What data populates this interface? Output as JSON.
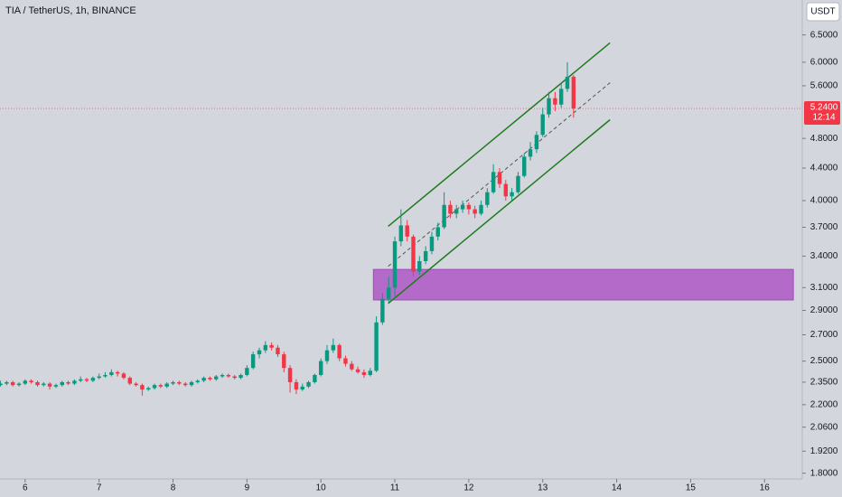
{
  "chart_data": {
    "type": "candlestick",
    "title": "TIA / TetherUS, 1h, BINANCE",
    "currency_button": "USDT",
    "log_scale": true,
    "up_color": "#089981",
    "down_color": "#f23645",
    "xlim": [
      5.66,
      16.51
    ],
    "ylim": [
      1.77,
      7.2
    ],
    "xticks": [
      6,
      7,
      8,
      9,
      10,
      11,
      12,
      13,
      14,
      15,
      16
    ],
    "yticks": [
      {
        "value": 6.5,
        "label": "6.5000"
      },
      {
        "value": 6.0,
        "label": "6.0000"
      },
      {
        "value": 5.6,
        "label": "5.6000"
      },
      {
        "value": 4.8,
        "label": "4.8000"
      },
      {
        "value": 4.4,
        "label": "4.4000"
      },
      {
        "value": 4.0,
        "label": "4.0000"
      },
      {
        "value": 3.7,
        "label": "3.7000"
      },
      {
        "value": 3.4,
        "label": "3.4000"
      },
      {
        "value": 3.1,
        "label": "3.1000"
      },
      {
        "value": 2.9,
        "label": "2.9000"
      },
      {
        "value": 2.7,
        "label": "2.7000"
      },
      {
        "value": 2.5,
        "label": "2.5000"
      },
      {
        "value": 2.35,
        "label": "2.3500"
      },
      {
        "value": 2.2,
        "label": "2.2000"
      },
      {
        "value": 2.06,
        "label": "2.0600"
      },
      {
        "value": 1.92,
        "label": "1.9200"
      },
      {
        "value": 1.8,
        "label": "1.8000"
      }
    ],
    "last_price": {
      "value": 5.24,
      "label": "5.2400",
      "countdown": "12:14",
      "color": "#f23645"
    },
    "x": [
      5.667,
      5.75,
      5.833,
      5.917,
      6,
      6.083,
      6.167,
      6.25,
      6.333,
      6.417,
      6.5,
      6.583,
      6.667,
      6.75,
      6.833,
      6.917,
      7,
      7.083,
      7.167,
      7.25,
      7.333,
      7.417,
      7.5,
      7.583,
      7.667,
      7.75,
      7.833,
      7.917,
      8,
      8.083,
      8.167,
      8.25,
      8.333,
      8.417,
      8.5,
      8.583,
      8.667,
      8.75,
      8.833,
      8.917,
      9,
      9.083,
      9.167,
      9.25,
      9.333,
      9.417,
      9.5,
      9.583,
      9.667,
      9.75,
      9.833,
      9.917,
      10,
      10.083,
      10.167,
      10.25,
      10.333,
      10.417,
      10.5,
      10.583,
      10.667,
      10.75,
      10.833,
      10.917,
      11,
      11.083,
      11.167,
      11.25,
      11.333,
      11.417,
      11.5,
      11.583,
      11.667,
      11.75,
      11.833,
      11.917,
      12,
      12.083,
      12.167,
      12.25,
      12.333,
      12.417,
      12.5,
      12.583,
      12.667,
      12.75,
      12.833,
      12.917,
      13,
      13.083,
      13.167,
      13.25,
      13.333,
      13.417
    ],
    "ohlc": [
      [
        2.33,
        2.36,
        2.32,
        2.34
      ],
      [
        2.34,
        2.36,
        2.33,
        2.35
      ],
      [
        2.35,
        2.36,
        2.32,
        2.33
      ],
      [
        2.33,
        2.35,
        2.32,
        2.34
      ],
      [
        2.34,
        2.37,
        2.33,
        2.36
      ],
      [
        2.36,
        2.37,
        2.34,
        2.35
      ],
      [
        2.35,
        2.36,
        2.32,
        2.33
      ],
      [
        2.33,
        2.35,
        2.32,
        2.34
      ],
      [
        2.34,
        2.35,
        2.3,
        2.32
      ],
      [
        2.32,
        2.34,
        2.31,
        2.33
      ],
      [
        2.33,
        2.36,
        2.32,
        2.35
      ],
      [
        2.35,
        2.36,
        2.33,
        2.34
      ],
      [
        2.34,
        2.37,
        2.33,
        2.36
      ],
      [
        2.36,
        2.39,
        2.35,
        2.37
      ],
      [
        2.37,
        2.38,
        2.35,
        2.36
      ],
      [
        2.36,
        2.39,
        2.35,
        2.38
      ],
      [
        2.38,
        2.41,
        2.37,
        2.39
      ],
      [
        2.39,
        2.42,
        2.38,
        2.4
      ],
      [
        2.4,
        2.44,
        2.39,
        2.42
      ],
      [
        2.42,
        2.43,
        2.39,
        2.41
      ],
      [
        2.41,
        2.42,
        2.37,
        2.38
      ],
      [
        2.38,
        2.39,
        2.33,
        2.34
      ],
      [
        2.34,
        2.35,
        2.32,
        2.33
      ],
      [
        2.33,
        2.34,
        2.26,
        2.3
      ],
      [
        2.3,
        2.32,
        2.29,
        2.31
      ],
      [
        2.31,
        2.34,
        2.3,
        2.33
      ],
      [
        2.33,
        2.34,
        2.31,
        2.32
      ],
      [
        2.32,
        2.35,
        2.31,
        2.34
      ],
      [
        2.34,
        2.36,
        2.33,
        2.35
      ],
      [
        2.35,
        2.36,
        2.33,
        2.34
      ],
      [
        2.34,
        2.35,
        2.32,
        2.33
      ],
      [
        2.33,
        2.36,
        2.32,
        2.35
      ],
      [
        2.35,
        2.37,
        2.34,
        2.36
      ],
      [
        2.36,
        2.39,
        2.35,
        2.38
      ],
      [
        2.38,
        2.39,
        2.36,
        2.37
      ],
      [
        2.37,
        2.4,
        2.36,
        2.39
      ],
      [
        2.39,
        2.41,
        2.38,
        2.4
      ],
      [
        2.4,
        2.41,
        2.38,
        2.39
      ],
      [
        2.39,
        2.4,
        2.37,
        2.38
      ],
      [
        2.38,
        2.41,
        2.37,
        2.4
      ],
      [
        2.4,
        2.47,
        2.39,
        2.45
      ],
      [
        2.45,
        2.57,
        2.44,
        2.55
      ],
      [
        2.55,
        2.6,
        2.52,
        2.58
      ],
      [
        2.58,
        2.65,
        2.56,
        2.62
      ],
      [
        2.62,
        2.64,
        2.58,
        2.6
      ],
      [
        2.6,
        2.62,
        2.53,
        2.55
      ],
      [
        2.55,
        2.57,
        2.42,
        2.45
      ],
      [
        2.45,
        2.47,
        2.28,
        2.35
      ],
      [
        2.35,
        2.37,
        2.27,
        2.3
      ],
      [
        2.3,
        2.34,
        2.29,
        2.32
      ],
      [
        2.32,
        2.36,
        2.31,
        2.35
      ],
      [
        2.35,
        2.41,
        2.34,
        2.4
      ],
      [
        2.4,
        2.52,
        2.39,
        2.5
      ],
      [
        2.5,
        2.62,
        2.48,
        2.58
      ],
      [
        2.58,
        2.67,
        2.56,
        2.62
      ],
      [
        2.62,
        2.63,
        2.5,
        2.52
      ],
      [
        2.52,
        2.54,
        2.46,
        2.48
      ],
      [
        2.48,
        2.5,
        2.43,
        2.44
      ],
      [
        2.44,
        2.46,
        2.41,
        2.42
      ],
      [
        2.42,
        2.44,
        2.38,
        2.4
      ],
      [
        2.4,
        2.45,
        2.39,
        2.43
      ],
      [
        2.43,
        2.85,
        2.42,
        2.8
      ],
      [
        2.8,
        3.05,
        2.78,
        3.0
      ],
      [
        3.0,
        3.2,
        2.97,
        3.1
      ],
      [
        3.1,
        3.6,
        3.0,
        3.55
      ],
      [
        3.55,
        3.9,
        3.5,
        3.72
      ],
      [
        3.72,
        3.78,
        3.55,
        3.6
      ],
      [
        3.6,
        3.62,
        3.2,
        3.25
      ],
      [
        3.25,
        3.4,
        3.22,
        3.35
      ],
      [
        3.35,
        3.5,
        3.32,
        3.45
      ],
      [
        3.45,
        3.65,
        3.42,
        3.6
      ],
      [
        3.6,
        3.75,
        3.56,
        3.7
      ],
      [
        3.7,
        4.1,
        3.68,
        3.95
      ],
      [
        3.95,
        4.0,
        3.8,
        3.85
      ],
      [
        3.85,
        3.95,
        3.8,
        3.9
      ],
      [
        3.9,
        4.0,
        3.86,
        3.95
      ],
      [
        3.95,
        3.98,
        3.84,
        3.9
      ],
      [
        3.9,
        3.94,
        3.8,
        3.85
      ],
      [
        3.85,
        4.0,
        3.83,
        3.95
      ],
      [
        3.95,
        4.15,
        3.92,
        4.1
      ],
      [
        4.1,
        4.45,
        4.08,
        4.35
      ],
      [
        4.35,
        4.4,
        4.15,
        4.2
      ],
      [
        4.2,
        4.25,
        4.0,
        4.05
      ],
      [
        4.05,
        4.15,
        4.0,
        4.1
      ],
      [
        4.1,
        4.35,
        4.08,
        4.3
      ],
      [
        4.3,
        4.6,
        4.28,
        4.55
      ],
      [
        4.55,
        4.75,
        4.5,
        4.65
      ],
      [
        4.65,
        4.9,
        4.6,
        4.85
      ],
      [
        4.85,
        5.25,
        4.82,
        5.15
      ],
      [
        5.15,
        5.5,
        5.1,
        5.4
      ],
      [
        5.4,
        5.5,
        5.2,
        5.3
      ],
      [
        5.3,
        5.65,
        5.25,
        5.55
      ],
      [
        5.55,
        6.0,
        5.5,
        5.75
      ],
      [
        5.75,
        5.78,
        5.1,
        5.24
      ]
    ],
    "zone": {
      "x": [
        10.71,
        16.39
      ],
      "y": [
        2.99,
        3.27
      ],
      "color": "#b36ac9"
    },
    "channel": {
      "x": [
        10.91,
        13.91
      ],
      "upper": [
        3.71,
        6.35
      ],
      "middle": [
        3.3,
        5.65
      ],
      "lower": [
        2.96,
        5.07
      ],
      "color": "#1e7b1e"
    }
  }
}
